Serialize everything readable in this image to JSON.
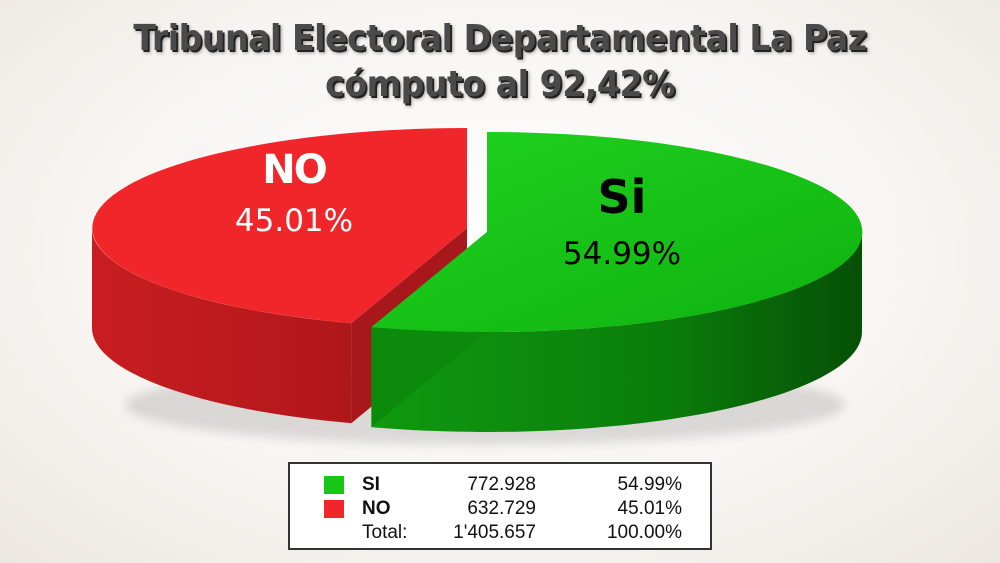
{
  "title_line1": "Tribunal Electoral Departamental La Paz",
  "title_line2": "cómputo al 92,42%",
  "chart_data": {
    "type": "pie",
    "three_d": true,
    "slices": [
      {
        "name": "Si",
        "legend_name": "SI",
        "value": 772928,
        "count_label": "772.928",
        "percent": 54.99,
        "percent_label": "54.99%",
        "color": "#17c617"
      },
      {
        "name": "NO",
        "legend_name": "NO",
        "value": 632729,
        "count_label": "632.729",
        "percent": 45.01,
        "percent_label": "45.01%",
        "color": "#f0262a"
      }
    ],
    "total": {
      "label": "Total:",
      "value": 1405657,
      "count_label": "1'405.657",
      "percent_label": "100.00%"
    },
    "legend_placement": "bottom-center"
  }
}
